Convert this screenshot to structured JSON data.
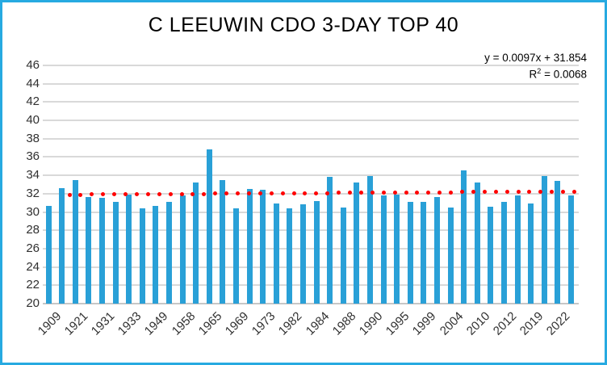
{
  "frame": {
    "border_color": "#27aae1",
    "background_color": "#ffffff"
  },
  "title": "C LEEUWIN CDO 3-DAY TOP 40",
  "trendline_label": {
    "equation": "y = 0.0097x + 31.854",
    "r2_prefix": "R",
    "r2_exponent": "2",
    "r2_suffix": " = 0.0068"
  },
  "chart_data": {
    "type": "bar",
    "title": "C LEEUWIN CDO 3-DAY TOP 40",
    "ylim": [
      20,
      46
    ],
    "ytick_step": 2,
    "ytick_labels": [
      "46",
      "44",
      "42",
      "40",
      "38",
      "36",
      "34",
      "32",
      "30",
      "28",
      "26",
      "24",
      "22",
      "20"
    ],
    "xtick_labels": [
      "1909",
      "1921",
      "1931",
      "1933",
      "1949",
      "1958",
      "1965",
      "1969",
      "1973",
      "1982",
      "1984",
      "1988",
      "1990",
      "1995",
      "1999",
      "2004",
      "2010",
      "2012",
      "2019",
      "2022"
    ],
    "label_every_n_bars": 2,
    "values": [
      30.7,
      32.6,
      33.5,
      31.6,
      31.5,
      31.1,
      31.9,
      30.4,
      30.7,
      31.1,
      31.8,
      33.2,
      36.8,
      33.5,
      30.4,
      32.5,
      32.4,
      30.9,
      30.4,
      30.8,
      31.2,
      33.8,
      30.5,
      33.2,
      33.9,
      31.8,
      31.9,
      31.1,
      31.1,
      31.6,
      30.5,
      34.5,
      33.2,
      30.6,
      31.1,
      31.8,
      30.9,
      33.9,
      33.4,
      31.8
    ],
    "bar_color": "#29a0d7",
    "gridline_color": "#d9d9d9",
    "grid": "horizontal",
    "legend": "none",
    "trendline": {
      "type": "linear",
      "slope": 0.0097,
      "intercept": 31.854,
      "r_squared": 0.0068,
      "equation": "y = 0.0097x + 31.854",
      "color": "#ff0000",
      "style": "dotted"
    }
  }
}
